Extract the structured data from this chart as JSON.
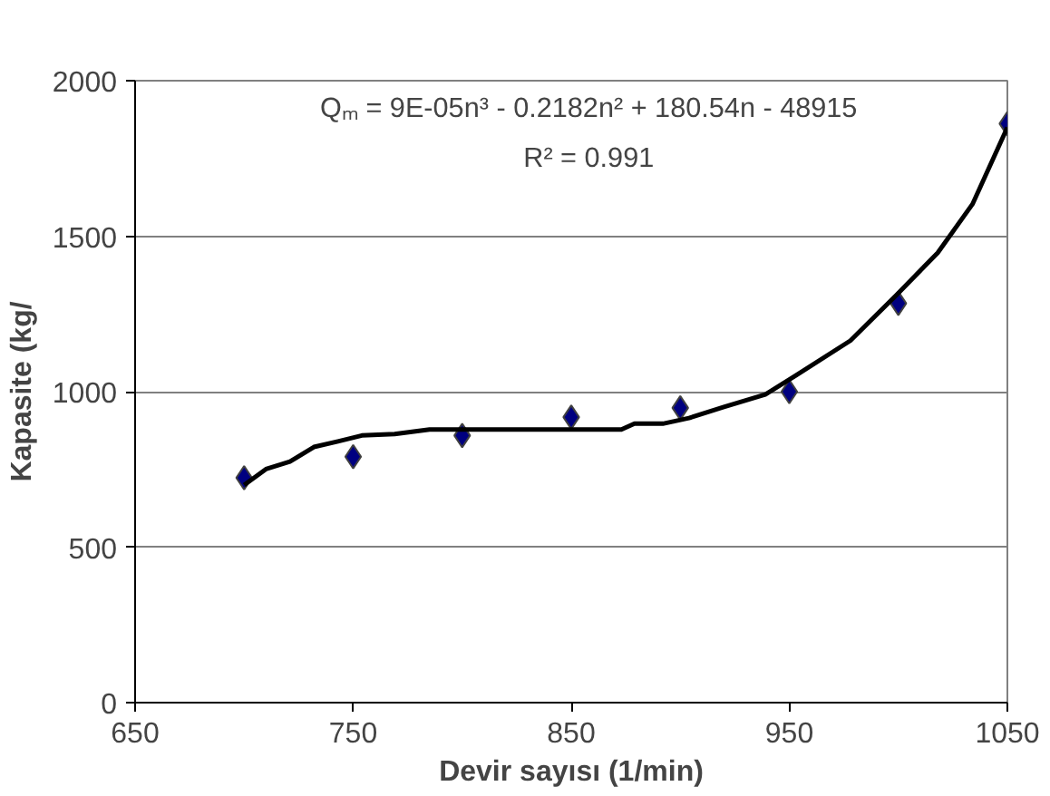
{
  "chart_data": {
    "type": "scatter",
    "xlabel": "Devir sayısı (1/min)",
    "ylabel": "Kapasite (kg/",
    "xlim": [
      650,
      1050
    ],
    "xticks": [
      650,
      750,
      850,
      950,
      1050
    ],
    "ylim": [
      0,
      2000
    ],
    "yticks": [
      0,
      500,
      1000,
      1500,
      2000
    ],
    "grid": "y",
    "marker": "diamond",
    "series": [
      {
        "color": "#000080",
        "x": [
          700,
          750,
          800,
          850,
          900,
          950,
          1000,
          1050
        ],
        "values": [
          723,
          791,
          859,
          918,
          948,
          1000,
          1284,
          1862
        ]
      },
      {
        "type": "line",
        "marker": "none",
        "color": "#000000",
        "x": [
          700,
          710,
          721,
          732,
          743,
          754,
          769,
          785,
          873,
          879,
          892,
          904,
          920,
          939,
          953,
          978,
          999,
          1018,
          1034,
          1050
        ],
        "values": [
          700,
          751,
          775,
          822,
          840,
          859,
          864,
          878,
          878,
          897,
          897,
          915,
          951,
          991,
          1052,
          1164,
          1310,
          1446,
          1603,
          1850
        ]
      }
    ],
    "annotations": [
      "Qₘ = 9E-05n³ - 0.2182n² + 180.54n - 48915",
      "R² = 0.991"
    ]
  }
}
